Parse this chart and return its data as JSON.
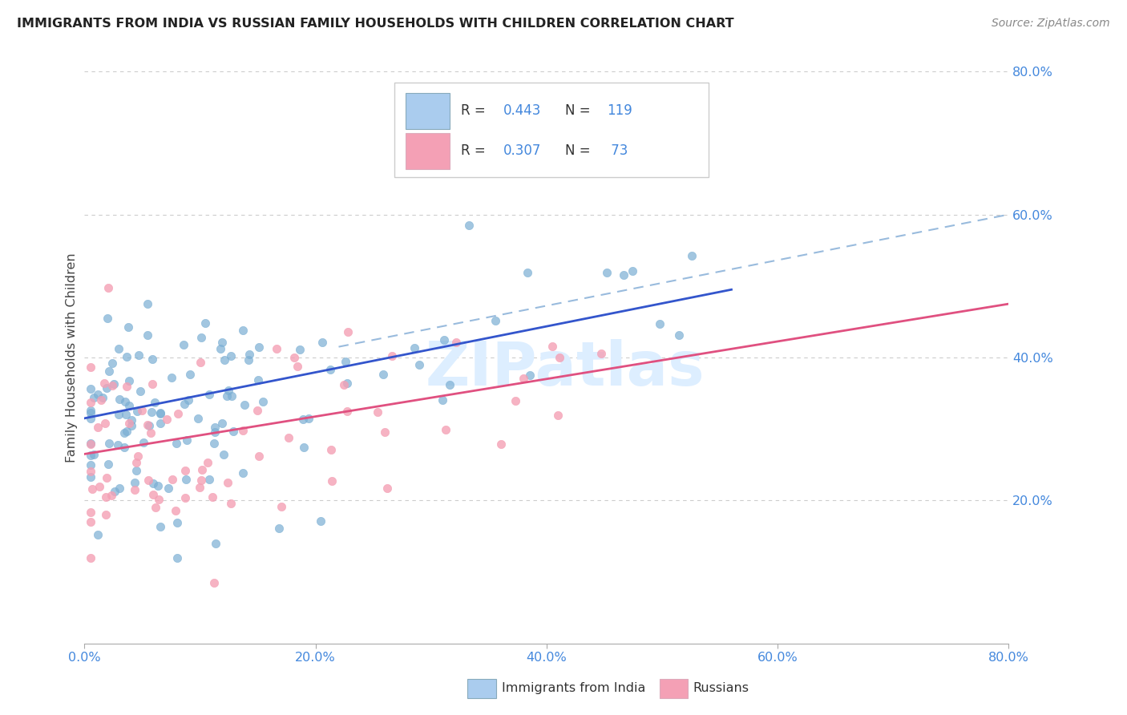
{
  "title": "IMMIGRANTS FROM INDIA VS RUSSIAN FAMILY HOUSEHOLDS WITH CHILDREN CORRELATION CHART",
  "source": "Source: ZipAtlas.com",
  "ylabel": "Family Households with Children",
  "xlim": [
    0,
    0.8
  ],
  "ylim": [
    0,
    0.8
  ],
  "india_color": "#7bafd4",
  "russia_color": "#f4a0b5",
  "india_trend_color": "#3355cc",
  "russia_trend_color": "#e05080",
  "dashed_color": "#99bbdd",
  "india_trend": [
    0.0,
    0.315,
    0.56,
    0.495
  ],
  "russia_trend": [
    0.0,
    0.265,
    0.8,
    0.475
  ],
  "dashed_trend": [
    0.22,
    0.415,
    0.8,
    0.6
  ],
  "background_color": "#ffffff",
  "grid_color": "#cccccc",
  "title_color": "#222222",
  "axis_label_color": "#4488dd",
  "right_label_color": "#4488dd",
  "legend_box_india": "#aaccee",
  "legend_box_russia": "#f4a0b5",
  "legend_box_india_edge": "#88aabb",
  "legend_box_russia_edge": "#ddaabb",
  "watermark_color": "#ddeeff",
  "india_N": 119,
  "russia_N": 73,
  "india_R": "0.443",
  "russia_R": "0.307"
}
